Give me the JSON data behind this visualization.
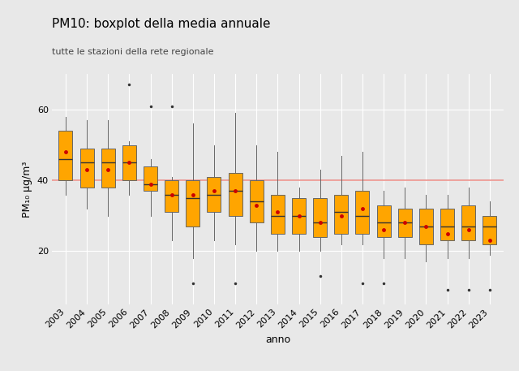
{
  "title": "PM10: boxplot della media annuale",
  "subtitle": "tutte le stazioni della rete regionale",
  "xlabel": "anno",
  "ylabel": "PM₁₀ μg/m³",
  "reference_line": 40,
  "reference_line_color": "#e8807a",
  "box_color": "#FFA500",
  "box_edge_color": "#666666",
  "median_color": "#333333",
  "mean_color": "#cc0000",
  "whisker_color": "#666666",
  "flier_color": "#333333",
  "background_color": "#e8e8e8",
  "panel_color": "#e8e8e8",
  "grid_color": "#ffffff",
  "years": [
    2003,
    2004,
    2005,
    2006,
    2007,
    2008,
    2009,
    2010,
    2011,
    2012,
    2013,
    2014,
    2015,
    2016,
    2017,
    2018,
    2019,
    2020,
    2021,
    2022,
    2023
  ],
  "boxes": {
    "2003": {
      "q1": 40,
      "median": 46,
      "q3": 54,
      "mean": 48,
      "whislo": 36,
      "whishi": 58,
      "fliers_low": [],
      "fliers_high": []
    },
    "2004": {
      "q1": 38,
      "median": 45,
      "q3": 49,
      "mean": 43,
      "whislo": 32,
      "whishi": 57,
      "fliers_low": [],
      "fliers_high": []
    },
    "2005": {
      "q1": 38,
      "median": 45,
      "q3": 49,
      "mean": 43,
      "whislo": 30,
      "whishi": 57,
      "fliers_low": [],
      "fliers_high": []
    },
    "2006": {
      "q1": 40,
      "median": 45,
      "q3": 50,
      "mean": 45,
      "whislo": 36,
      "whishi": 51,
      "fliers_low": [],
      "fliers_high": [
        67
      ]
    },
    "2007": {
      "q1": 37,
      "median": 39,
      "q3": 44,
      "mean": 39,
      "whislo": 30,
      "whishi": 46,
      "fliers_low": [],
      "fliers_high": [
        61
      ]
    },
    "2008": {
      "q1": 31,
      "median": 36,
      "q3": 40,
      "mean": 36,
      "whislo": 23,
      "whishi": 41,
      "fliers_low": [],
      "fliers_high": [
        61
      ]
    },
    "2009": {
      "q1": 27,
      "median": 35,
      "q3": 40,
      "mean": 36,
      "whislo": 18,
      "whishi": 56,
      "fliers_low": [
        11
      ],
      "fliers_high": []
    },
    "2010": {
      "q1": 31,
      "median": 36,
      "q3": 41,
      "mean": 37,
      "whislo": 23,
      "whishi": 50,
      "fliers_low": [],
      "fliers_high": []
    },
    "2011": {
      "q1": 30,
      "median": 37,
      "q3": 42,
      "mean": 37,
      "whislo": 22,
      "whishi": 59,
      "fliers_low": [
        11
      ],
      "fliers_high": []
    },
    "2012": {
      "q1": 28,
      "median": 34,
      "q3": 40,
      "mean": 33,
      "whislo": 20,
      "whishi": 50,
      "fliers_low": [],
      "fliers_high": []
    },
    "2013": {
      "q1": 25,
      "median": 30,
      "q3": 36,
      "mean": 31,
      "whislo": 20,
      "whishi": 48,
      "fliers_low": [],
      "fliers_high": []
    },
    "2014": {
      "q1": 25,
      "median": 30,
      "q3": 35,
      "mean": 30,
      "whislo": 20,
      "whishi": 38,
      "fliers_low": [],
      "fliers_high": []
    },
    "2015": {
      "q1": 24,
      "median": 28,
      "q3": 35,
      "mean": 28,
      "whislo": 20,
      "whishi": 43,
      "fliers_low": [
        13
      ],
      "fliers_high": []
    },
    "2016": {
      "q1": 25,
      "median": 31,
      "q3": 36,
      "mean": 30,
      "whislo": 22,
      "whishi": 47,
      "fliers_low": [],
      "fliers_high": []
    },
    "2017": {
      "q1": 25,
      "median": 30,
      "q3": 37,
      "mean": 32,
      "whislo": 22,
      "whishi": 48,
      "fliers_low": [
        11
      ],
      "fliers_high": []
    },
    "2018": {
      "q1": 24,
      "median": 28,
      "q3": 33,
      "mean": 26,
      "whislo": 18,
      "whishi": 37,
      "fliers_low": [
        11
      ],
      "fliers_high": []
    },
    "2019": {
      "q1": 24,
      "median": 28,
      "q3": 32,
      "mean": 28,
      "whislo": 18,
      "whishi": 38,
      "fliers_low": [],
      "fliers_high": []
    },
    "2020": {
      "q1": 22,
      "median": 27,
      "q3": 32,
      "mean": 27,
      "whislo": 17,
      "whishi": 36,
      "fliers_low": [],
      "fliers_high": []
    },
    "2021": {
      "q1": 23,
      "median": 27,
      "q3": 32,
      "mean": 25,
      "whislo": 18,
      "whishi": 36,
      "fliers_low": [
        9
      ],
      "fliers_high": []
    },
    "2022": {
      "q1": 23,
      "median": 27,
      "q3": 33,
      "mean": 26,
      "whislo": 18,
      "whishi": 38,
      "fliers_low": [
        9
      ],
      "fliers_high": []
    },
    "2023": {
      "q1": 22,
      "median": 27,
      "q3": 30,
      "mean": 23,
      "whislo": 19,
      "whishi": 34,
      "fliers_low": [
        9
      ],
      "fliers_high": []
    }
  },
  "ylim": [
    5,
    70
  ],
  "yticks": [
    20,
    40,
    60
  ],
  "title_fontsize": 11,
  "subtitle_fontsize": 8,
  "axis_fontsize": 8,
  "label_fontsize": 9
}
